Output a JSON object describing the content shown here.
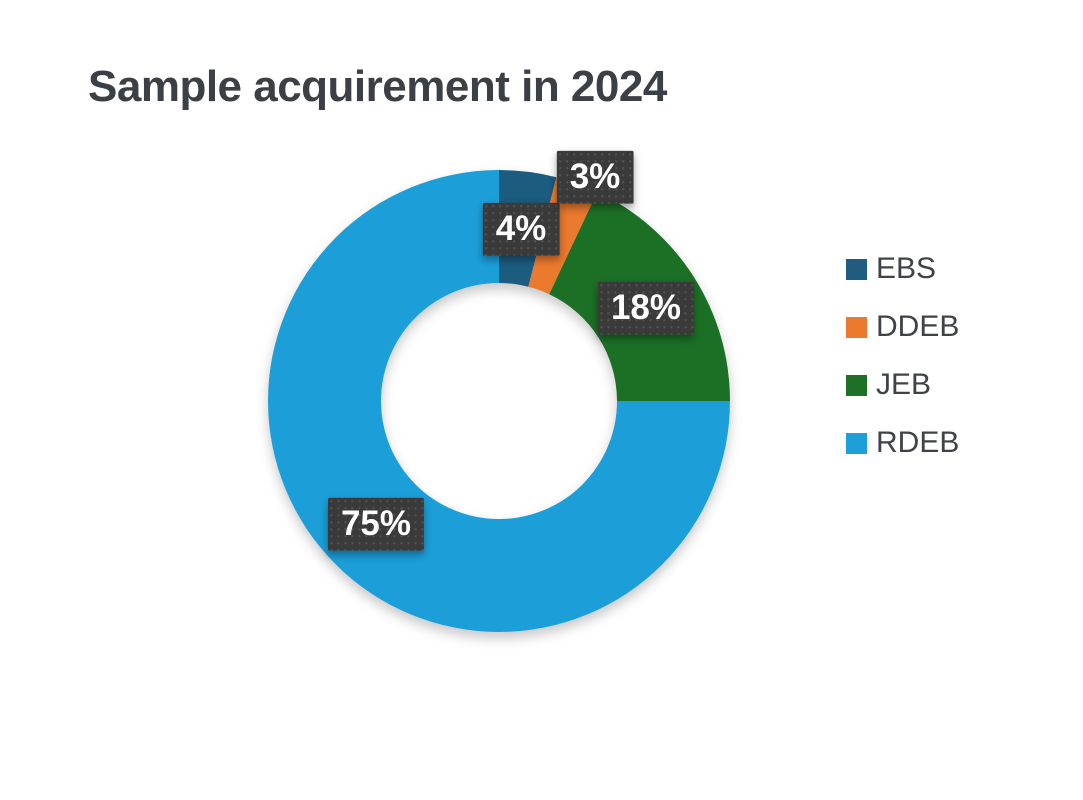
{
  "chart_data": {
    "type": "pie",
    "subtype": "donut",
    "title": "Sample acquirement in 2024",
    "legend_position": "right",
    "categories": [
      "EBS",
      "DDEB",
      "JEB",
      "RDEB"
    ],
    "values": [
      4,
      3,
      18,
      75
    ],
    "unit": "percent",
    "colors": [
      "#1F5C7F",
      "#EB7A2E",
      "#1E7027",
      "#1E9FD9"
    ],
    "data_labels": [
      "4%",
      "3%",
      "18%",
      "75%"
    ],
    "label_box_color": "#3A3A3A",
    "label_text_color": "#FFFFFF",
    "title_color": "#3B3F46",
    "legend_text_color": "#3F4347",
    "background_color": "#FFFFFF",
    "start_angle_deg": 0,
    "direction": "clockwise",
    "hole_ratio": 0.51
  }
}
